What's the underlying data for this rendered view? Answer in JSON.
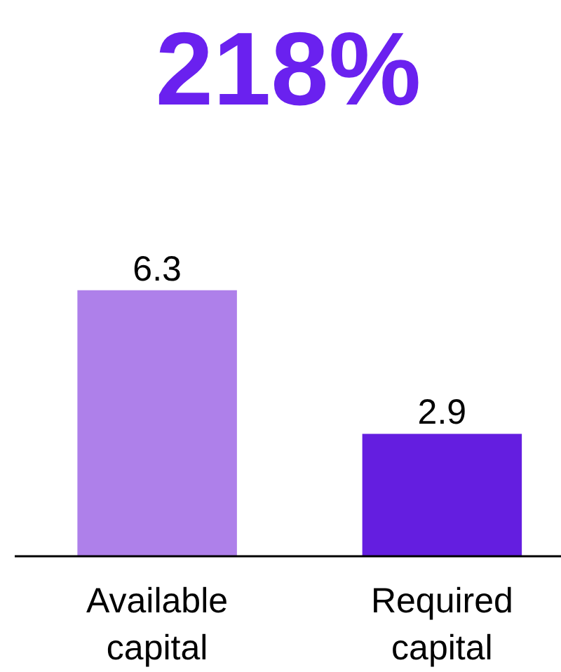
{
  "chart_data": {
    "type": "bar",
    "title": "218%",
    "categories": [
      "Available capital",
      "Required capital"
    ],
    "values": [
      6.3,
      2.9
    ],
    "colors": [
      "#ae80ea",
      "#641ee0"
    ],
    "data_labels": true,
    "tick_labels": "x"
  }
}
